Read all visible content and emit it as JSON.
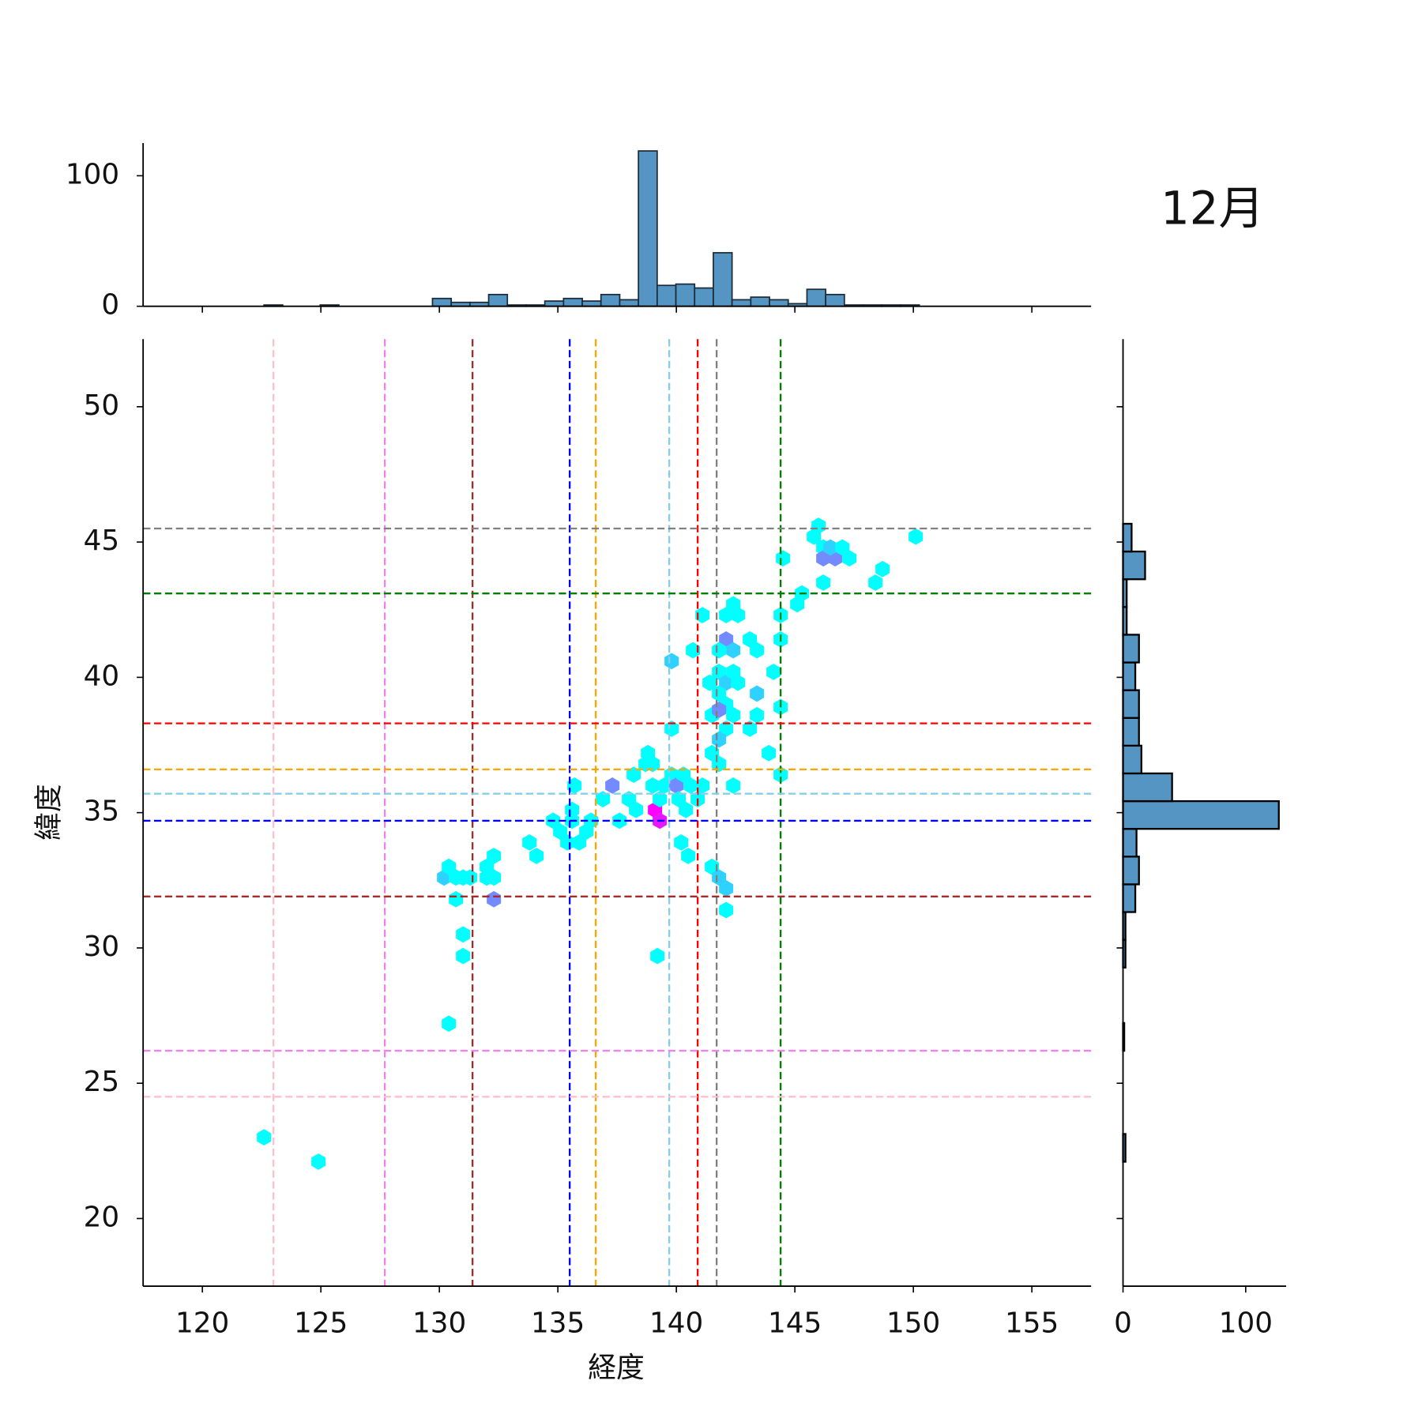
{
  "chart_data": [
    {
      "type": "hexbin",
      "title": "12月",
      "x_label": "経度",
      "y_label": "緯度",
      "xlim": [
        117.5,
        157.5
      ],
      "ylim": [
        17.5,
        52.5
      ],
      "xticks": [
        120,
        125,
        130,
        135,
        140,
        145,
        150,
        155
      ],
      "yticks": [
        20,
        25,
        30,
        35,
        40,
        45,
        50
      ],
      "cmap": "cool",
      "x": [
        122.6,
        124.9,
        130.4,
        139.2,
        131.0,
        131.0,
        130.7,
        132.3,
        130.2,
        130.4,
        130.7,
        131.0,
        131.3,
        132.0,
        132.3,
        132.0,
        132.3,
        133.8,
        134.1,
        134.8,
        135.1,
        135.4,
        135.6,
        135.6,
        135.7,
        135.9,
        136.2,
        136.4,
        136.9,
        137.3,
        137.6,
        138.0,
        138.3,
        138.2,
        138.7,
        138.8,
        139.0,
        139.1,
        139.3,
        139.3,
        139.0,
        139.5,
        139.8,
        140.0,
        140.3,
        140.1,
        140.4,
        140.6,
        140.9,
        141.1,
        140.2,
        140.5,
        141.5,
        141.8,
        142.1,
        142.1,
        139.8,
        139.8,
        140.7,
        141.1,
        142.1,
        142.4,
        142.6,
        142.1,
        142.4,
        141.8,
        143.1,
        143.4,
        144.4,
        144.4,
        145.1,
        145.3,
        146.2,
        145.8,
        146.0,
        146.2,
        146.2,
        146.7,
        146.5,
        147.0,
        147.3,
        144.5,
        150.1,
        148.4,
        148.7,
        141.4,
        141.8,
        142.1,
        142.4,
        142.6,
        141.8,
        142.1,
        141.5,
        141.8,
        142.1,
        142.4,
        141.5,
        141.8,
        141.8,
        142.4,
        143.1,
        143.4,
        143.4,
        143.9,
        144.1,
        144.4,
        144.4
      ],
      "y": [
        23.0,
        22.1,
        27.2,
        29.7,
        30.5,
        29.7,
        31.8,
        31.8,
        32.6,
        33.0,
        32.6,
        32.6,
        32.6,
        32.6,
        32.6,
        33.0,
        33.4,
        33.9,
        33.4,
        34.7,
        34.3,
        33.9,
        34.7,
        35.1,
        36.0,
        33.9,
        34.3,
        34.7,
        35.5,
        36.0,
        34.7,
        35.5,
        35.1,
        36.4,
        36.8,
        37.2,
        36.8,
        35.1,
        34.7,
        35.5,
        36.0,
        36.0,
        36.4,
        36.0,
        36.4,
        35.5,
        35.1,
        36.0,
        35.5,
        36.0,
        33.9,
        33.4,
        33.0,
        32.6,
        32.2,
        31.4,
        38.1,
        40.6,
        41.0,
        42.3,
        42.3,
        42.7,
        42.3,
        41.4,
        41.0,
        41.0,
        41.4,
        41.0,
        41.4,
        42.3,
        42.7,
        43.1,
        43.5,
        45.2,
        45.6,
        44.8,
        44.4,
        44.4,
        44.8,
        44.8,
        44.4,
        44.4,
        45.2,
        43.5,
        44.0,
        39.8,
        40.2,
        39.8,
        40.2,
        39.8,
        39.4,
        39.0,
        38.6,
        38.8,
        38.1,
        38.6,
        37.2,
        36.8,
        37.7,
        36.0,
        38.1,
        38.6,
        39.4,
        37.2,
        40.2,
        38.9,
        36.4
      ],
      "counts": [
        1,
        1,
        1,
        1,
        1,
        1,
        1,
        6,
        3,
        1,
        1,
        1,
        1,
        1,
        1,
        1,
        1,
        1,
        1,
        1,
        1,
        1,
        1,
        1,
        1,
        1,
        1,
        1,
        1,
        6,
        1,
        1,
        1,
        1,
        1,
        1,
        1,
        12,
        11,
        1,
        1,
        1,
        1,
        6,
        1,
        1,
        1,
        1,
        1,
        1,
        1,
        1,
        1,
        3,
        3,
        1,
        1,
        3,
        1,
        1,
        1,
        1,
        1,
        6,
        3,
        1,
        1,
        1,
        1,
        1,
        1,
        1,
        1,
        1,
        1,
        1,
        6,
        6,
        3,
        1,
        1,
        1,
        1,
        1,
        1,
        1,
        1,
        3,
        1,
        1,
        1,
        1,
        1,
        6,
        1,
        1,
        1,
        1,
        3,
        1,
        1,
        1,
        3,
        1,
        1,
        1,
        1
      ],
      "vlines": [
        {
          "x": 123.0,
          "color": "pink"
        },
        {
          "x": 127.7,
          "color": "violet"
        },
        {
          "x": 131.4,
          "color": "brown"
        },
        {
          "x": 135.5,
          "color": "blue"
        },
        {
          "x": 136.6,
          "color": "orange"
        },
        {
          "x": 139.7,
          "color": "skyblue"
        },
        {
          "x": 140.9,
          "color": "red"
        },
        {
          "x": 141.7,
          "color": "gray"
        },
        {
          "x": 144.4,
          "color": "green"
        }
      ],
      "hlines": [
        {
          "y": 24.5,
          "color": "pink"
        },
        {
          "y": 26.2,
          "color": "violet"
        },
        {
          "y": 31.9,
          "color": "brown"
        },
        {
          "y": 34.7,
          "color": "blue"
        },
        {
          "y": 36.6,
          "color": "orange"
        },
        {
          "y": 35.7,
          "color": "skyblue"
        },
        {
          "y": 38.3,
          "color": "red"
        },
        {
          "y": 45.5,
          "color": "gray"
        },
        {
          "y": 43.1,
          "color": "green"
        }
      ]
    },
    {
      "type": "histogram",
      "orientation": "vertical",
      "color": "#5595c4",
      "bins": [
        122.6,
        123.39,
        124.18,
        124.97,
        125.76,
        126.55,
        127.34,
        128.13,
        128.92,
        129.71,
        130.5,
        131.29,
        132.08,
        132.87,
        133.66,
        134.45,
        135.24,
        136.03,
        136.82,
        137.61,
        138.4,
        139.19,
        139.98,
        140.77,
        141.56,
        142.35,
        143.14,
        143.93,
        144.72,
        145.51,
        146.3,
        147.09,
        147.88,
        148.67,
        149.46,
        150.25
      ],
      "counts": [
        1,
        0,
        0,
        1,
        0,
        0,
        0,
        0,
        0,
        6,
        3,
        3,
        9,
        1,
        1,
        4,
        6,
        4,
        9,
        5,
        119,
        16,
        17,
        14,
        41,
        5,
        7,
        5,
        2,
        13,
        9,
        1,
        1,
        1,
        1
      ],
      "ylim": [
        0,
        125
      ],
      "yticks": [
        0,
        100
      ]
    },
    {
      "type": "histogram",
      "orientation": "horizontal",
      "color": "#5595c4",
      "bins": [
        22.1,
        23.125,
        24.15,
        25.175,
        26.2,
        27.225,
        28.25,
        29.275,
        30.3,
        31.325,
        32.35,
        33.375,
        34.4,
        35.425,
        36.45,
        37.475,
        38.5,
        39.525,
        40.55,
        41.575,
        42.6,
        43.625,
        44.65,
        45.675
      ],
      "counts": [
        2,
        0,
        0,
        0,
        1,
        0,
        0,
        2,
        2,
        10,
        13,
        11,
        127,
        40,
        15,
        13,
        13,
        10,
        13,
        3,
        3,
        18,
        7
      ],
      "xlim": [
        0,
        133
      ],
      "xticks": [
        0,
        100
      ]
    }
  ]
}
